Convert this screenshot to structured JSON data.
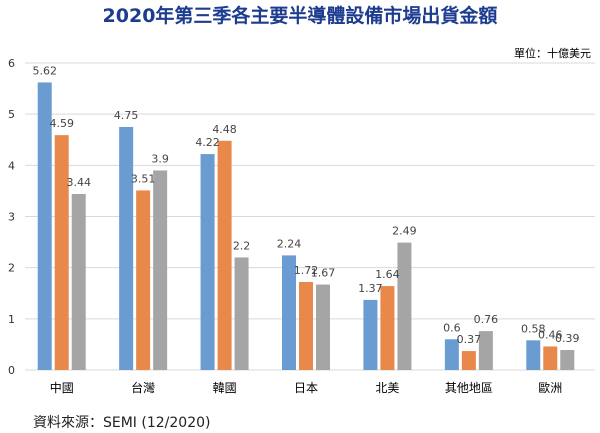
{
  "chart_data": {
    "type": "bar",
    "title": "2020年第三季各主要半導體設備市場出貨金額",
    "unit_label": "單位：十億美元",
    "source": "資料來源：SEMI (12/2020)",
    "xlabel": "",
    "ylabel": "",
    "ylim": [
      0,
      6
    ],
    "yticks": [
      "0",
      "1",
      "2",
      "3",
      "4",
      "5",
      "6"
    ],
    "grid": true,
    "legend": "none",
    "categories": [
      "中國",
      "台灣",
      "韓國",
      "日本",
      "北美",
      "其他地區",
      "歐洲"
    ],
    "series": [
      {
        "name": "series-1",
        "color": "#6a9bd1",
        "values": [
          5.62,
          4.75,
          4.22,
          2.24,
          1.37,
          0.6,
          0.58
        ],
        "labels": [
          "5.62",
          "4.75",
          "4.22",
          "2.24",
          "1.37",
          "0.6",
          "0.58"
        ]
      },
      {
        "name": "series-2",
        "color": "#e8884a",
        "values": [
          4.59,
          3.51,
          4.48,
          1.72,
          1.64,
          0.37,
          0.46
        ],
        "labels": [
          "4.59",
          "3.51",
          "4.48",
          "1.72",
          "1.64",
          "0.37",
          "0.46"
        ]
      },
      {
        "name": "series-3",
        "color": "#a5a5a5",
        "values": [
          3.44,
          3.9,
          2.2,
          1.67,
          2.49,
          0.76,
          0.39
        ],
        "labels": [
          "3.44",
          "3.9",
          "2.2",
          "1.67",
          "2.49",
          "0.76",
          "0.39"
        ]
      }
    ]
  }
}
